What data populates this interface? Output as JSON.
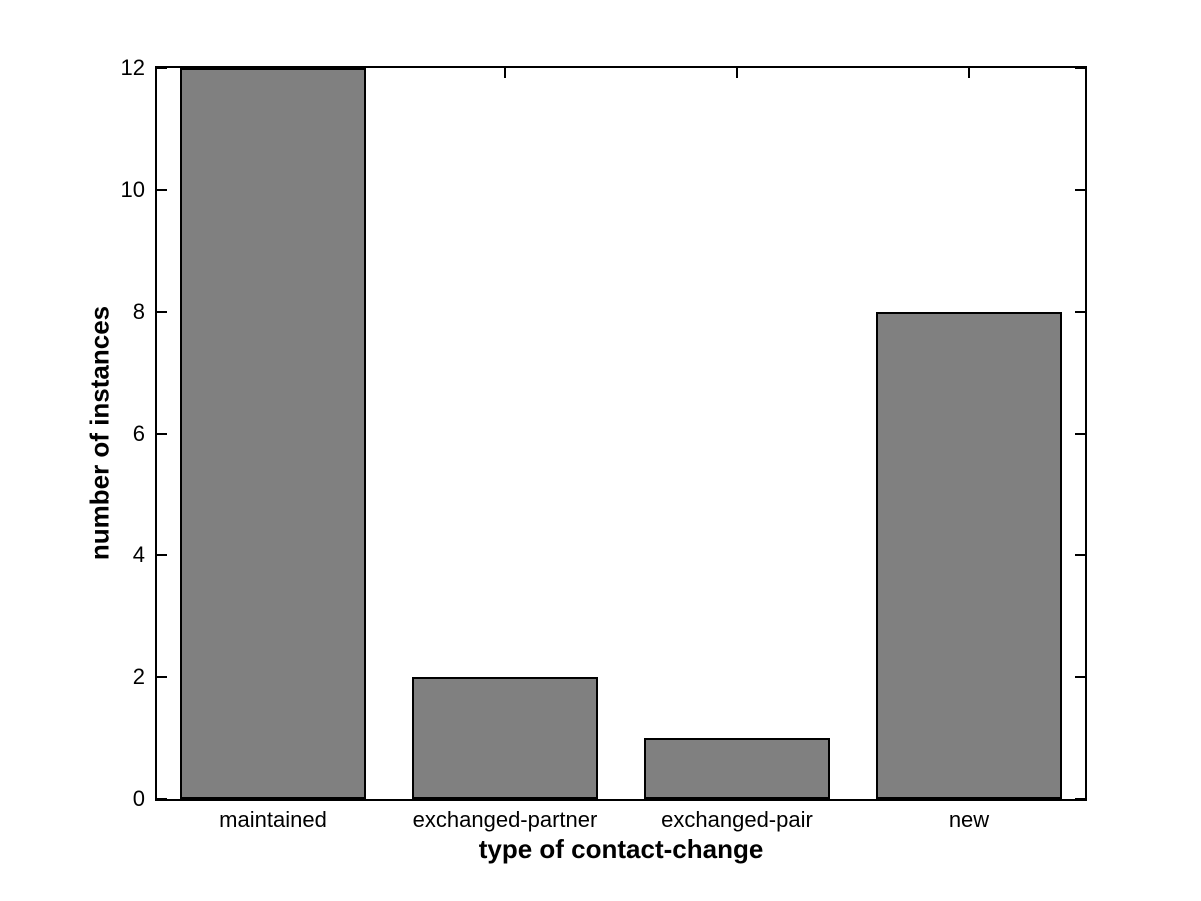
{
  "figure": {
    "background_color": "#ffffff"
  },
  "chart_data": {
    "type": "bar",
    "title": "",
    "xlabel": "type of contact-change",
    "ylabel": "number of instances",
    "categories": [
      "maintained",
      "exchanged-partner",
      "exchanged-pair",
      "new"
    ],
    "values": [
      12,
      2,
      1,
      8
    ],
    "ylim": [
      0,
      12
    ],
    "yticks": [
      0,
      2,
      4,
      6,
      8,
      10,
      12
    ],
    "bar_width_fraction": 0.8,
    "bar_fill_color": "#808080",
    "bar_edge_color": "#000000",
    "axis_color": "#000000",
    "text_color": "#000000",
    "grid": false,
    "legend_position": "none",
    "tick_direction": "in",
    "box": true
  }
}
